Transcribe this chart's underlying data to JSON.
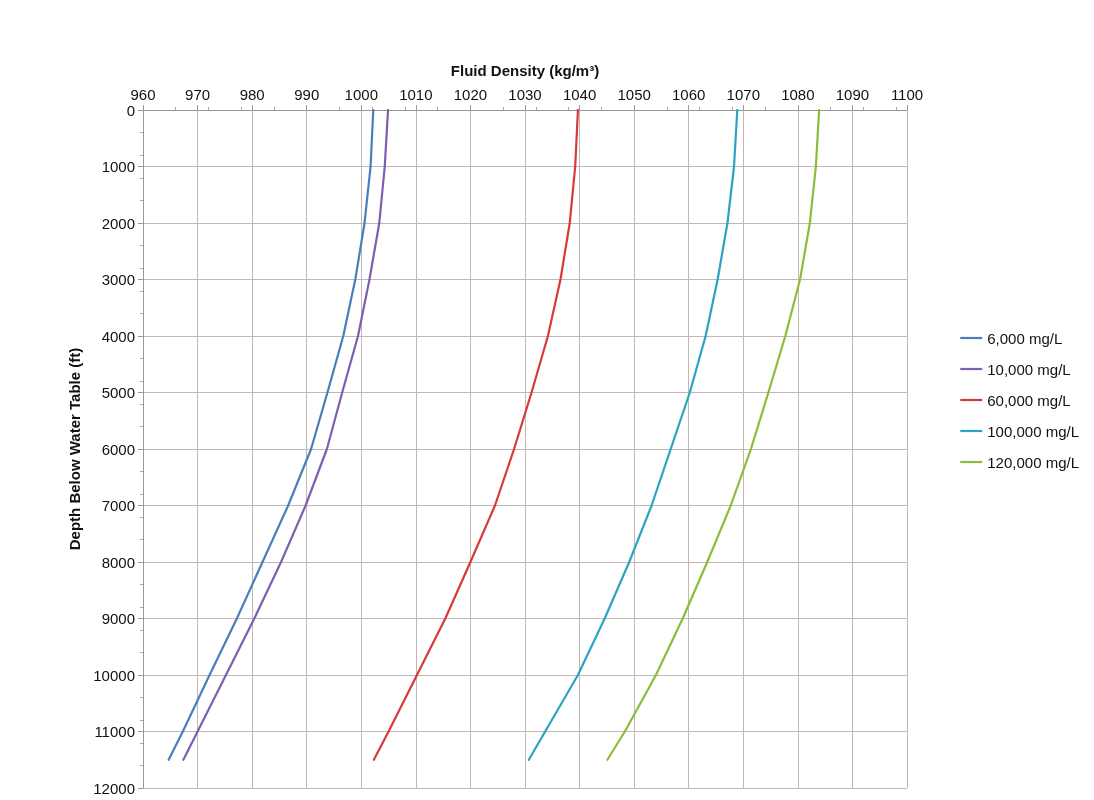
{
  "chart_data": {
    "type": "line",
    "orientation": "horizontal",
    "xlabel": "Fluid Density (kg/m³)",
    "ylabel": "Depth Below Water Table (ft)",
    "x": [
      0,
      1000,
      2000,
      3000,
      4000,
      5000,
      6000,
      7000,
      8000,
      9000,
      10000,
      11000,
      11500
    ],
    "series": [
      {
        "name": "6,000 mg/L",
        "color": "#4a7ebb",
        "values": [
          1002.2,
          1001.7,
          1000.6,
          998.9,
          996.7,
          993.8,
          990.8,
          986.6,
          981.9,
          977.2,
          972.2,
          967.3,
          964.7
        ]
      },
      {
        "name": "10,000 mg/L",
        "color": "#7d5fb2",
        "values": [
          1004.9,
          1004.3,
          1003.3,
          1001.5,
          999.4,
          996.5,
          993.7,
          989.8,
          985.3,
          980.4,
          975.2,
          970.0,
          967.4
        ]
      },
      {
        "name": "60,000 mg/L",
        "color": "#d63a3a",
        "values": [
          1039.7,
          1039.2,
          1038.2,
          1036.5,
          1034.2,
          1031.2,
          1028.0,
          1024.5,
          1020.0,
          1015.4,
          1010.2,
          1005.0,
          1002.3
        ]
      },
      {
        "name": "100,000 mg/L",
        "color": "#2ba3c4",
        "values": [
          1068.9,
          1068.3,
          1067.1,
          1065.3,
          1063.1,
          1060.2,
          1056.7,
          1053.2,
          1049.1,
          1044.6,
          1039.7,
          1033.7,
          1030.7
        ]
      },
      {
        "name": "120,000 mg/L",
        "color": "#8cbc3a",
        "values": [
          1083.9,
          1083.3,
          1082.2,
          1080.4,
          1077.7,
          1074.6,
          1071.4,
          1067.7,
          1063.4,
          1058.9,
          1054.0,
          1048.3,
          1045.1
        ]
      }
    ],
    "xlim": [
      960,
      1100
    ],
    "xticks": [
      960,
      970,
      980,
      990,
      1000,
      1010,
      1020,
      1030,
      1040,
      1050,
      1060,
      1070,
      1080,
      1090,
      1100
    ],
    "ylim": [
      12000,
      0
    ],
    "yticks": [
      0,
      1000,
      2000,
      3000,
      4000,
      5000,
      6000,
      7000,
      8000,
      9000,
      10000,
      11000,
      12000
    ],
    "grid": true,
    "legend": "right",
    "marker": "none",
    "line_style": "solid"
  }
}
